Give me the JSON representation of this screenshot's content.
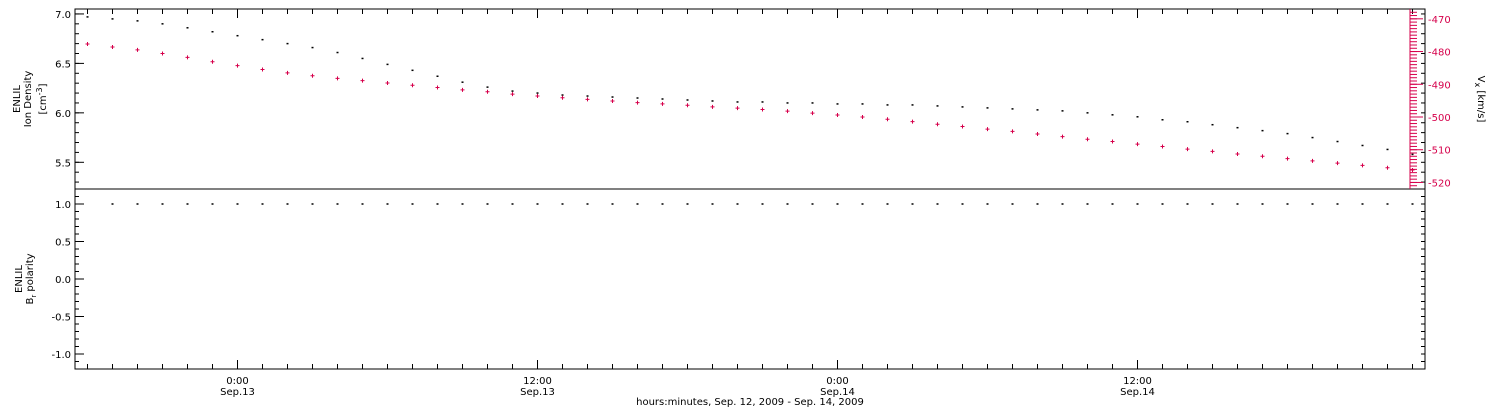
{
  "x_axis": {
    "title": "hours:minutes, Sep. 12, 2009 - Sep. 14, 2009",
    "ticks": [
      {
        "hours": 6,
        "time": "0:00",
        "date": "Sep.13"
      },
      {
        "hours": 18,
        "time": "12:00",
        "date": "Sep.13"
      },
      {
        "hours": 30,
        "time": "0:00",
        "date": "Sep.14"
      },
      {
        "hours": 42,
        "time": "12:00",
        "date": "Sep.14"
      }
    ]
  },
  "top_panel": {
    "left_label_line1": "ENLIL",
    "left_label_line2": "Ion Density",
    "left_label_units_open": "[cm",
    "left_label_units_sup": "-3",
    "left_label_units_close": "]",
    "right_label_main": "V",
    "right_label_sub": "x",
    "right_label_units": " [km/s]",
    "right_axis_color": "#d6004b"
  },
  "bottom_panel": {
    "left_label_line1": "ENLIL",
    "left_label_main": "B",
    "left_label_sub": "r",
    "left_label_rest": " polarity"
  },
  "chart_data": [
    {
      "type": "scatter",
      "panel": "top",
      "x_unit": "hours since Sep. 12, 2009 18:00",
      "xlim": [
        -0.5,
        53.5
      ],
      "x": [
        0,
        1,
        2,
        3,
        4,
        5,
        6,
        7,
        8,
        9,
        10,
        11,
        12,
        13,
        14,
        15,
        16,
        17,
        18,
        19,
        20,
        21,
        22,
        23,
        24,
        25,
        26,
        27,
        28,
        29,
        30,
        31,
        32,
        33,
        34,
        35,
        36,
        37,
        38,
        39,
        40,
        41,
        42,
        43,
        44,
        45,
        46,
        47,
        48,
        49,
        50,
        51,
        52,
        53
      ],
      "y_left": {
        "label": "Ion Density",
        "ylim": [
          5.23,
          7.05
        ],
        "ticks": [
          "5.5",
          "6.0",
          "6.5",
          "7.0"
        ],
        "tick_values": [
          5.5,
          6.0,
          6.5,
          7.0
        ],
        "color": "#000000",
        "values": [
          6.97,
          6.95,
          6.93,
          6.9,
          6.86,
          6.82,
          6.78,
          6.74,
          6.7,
          6.66,
          6.61,
          6.55,
          6.49,
          6.43,
          6.37,
          6.31,
          6.26,
          6.22,
          6.2,
          6.18,
          6.17,
          6.16,
          6.15,
          6.14,
          6.13,
          6.12,
          6.11,
          6.11,
          6.1,
          6.1,
          6.09,
          6.09,
          6.08,
          6.08,
          6.07,
          6.06,
          6.05,
          6.04,
          6.03,
          6.02,
          6.0,
          5.98,
          5.96,
          5.93,
          5.91,
          5.88,
          5.85,
          5.82,
          5.79,
          5.75,
          5.71,
          5.67,
          5.63,
          5.58
        ]
      },
      "y_right": {
        "label": "Vx [km/s]",
        "ylim": [
          -522,
          -467
        ],
        "ticks": [
          "-470",
          "-480",
          "-490",
          "-500",
          "-510",
          "-520"
        ],
        "tick_values": [
          -470,
          -480,
          -490,
          -500,
          -510,
          -520
        ],
        "color": "#d6004b",
        "values": [
          -477.7,
          -478.6,
          -479.5,
          -480.6,
          -481.8,
          -483.1,
          -484.3,
          -485.5,
          -486.5,
          -487.4,
          -488.2,
          -488.9,
          -489.6,
          -490.3,
          -491.0,
          -491.7,
          -492.3,
          -493.0,
          -493.6,
          -494.1,
          -494.6,
          -495.1,
          -495.6,
          -496.0,
          -496.4,
          -496.9,
          -497.3,
          -497.7,
          -498.2,
          -498.8,
          -499.4,
          -500.0,
          -500.7,
          -501.4,
          -502.2,
          -502.9,
          -503.7,
          -504.4,
          -505.2,
          -506.0,
          -506.8,
          -507.5,
          -508.3,
          -509.0,
          -509.8,
          -510.5,
          -511.3,
          -512.0,
          -512.7,
          -513.4,
          -514.1,
          -514.8,
          -515.5,
          -516.2
        ]
      }
    },
    {
      "type": "scatter",
      "panel": "bottom",
      "x_unit": "hours since Sep. 12, 2009 18:00",
      "xlim": [
        -0.5,
        53.5
      ],
      "x": [
        1,
        2,
        3,
        4,
        5,
        6,
        7,
        8,
        9,
        10,
        11,
        12,
        13,
        14,
        15,
        16,
        17,
        18,
        19,
        20,
        21,
        22,
        23,
        24,
        25,
        26,
        27,
        28,
        29,
        30,
        31,
        32,
        33,
        34,
        35,
        36,
        37,
        38,
        39,
        40,
        41,
        42,
        43,
        44,
        45,
        46,
        47,
        48,
        49,
        50,
        51,
        52,
        53
      ],
      "y_left": {
        "label": "Br polarity",
        "ylim": [
          -1.2,
          1.2
        ],
        "ticks": [
          "-1.0",
          "-0.5",
          "0.0",
          "0.5",
          "1.0"
        ],
        "tick_values": [
          -1.0,
          -0.5,
          0.0,
          0.5,
          1.0
        ],
        "color": "#000000",
        "values": [
          1,
          1,
          1,
          1,
          1,
          1,
          1,
          1,
          1,
          1,
          1,
          1,
          1,
          1,
          1,
          1,
          1,
          1,
          1,
          1,
          1,
          1,
          1,
          1,
          1,
          1,
          1,
          1,
          1,
          1,
          1,
          1,
          1,
          1,
          1,
          1,
          1,
          1,
          1,
          1,
          1,
          1,
          1,
          1,
          1,
          1,
          1,
          1,
          1,
          1,
          1,
          1,
          1
        ]
      }
    }
  ]
}
